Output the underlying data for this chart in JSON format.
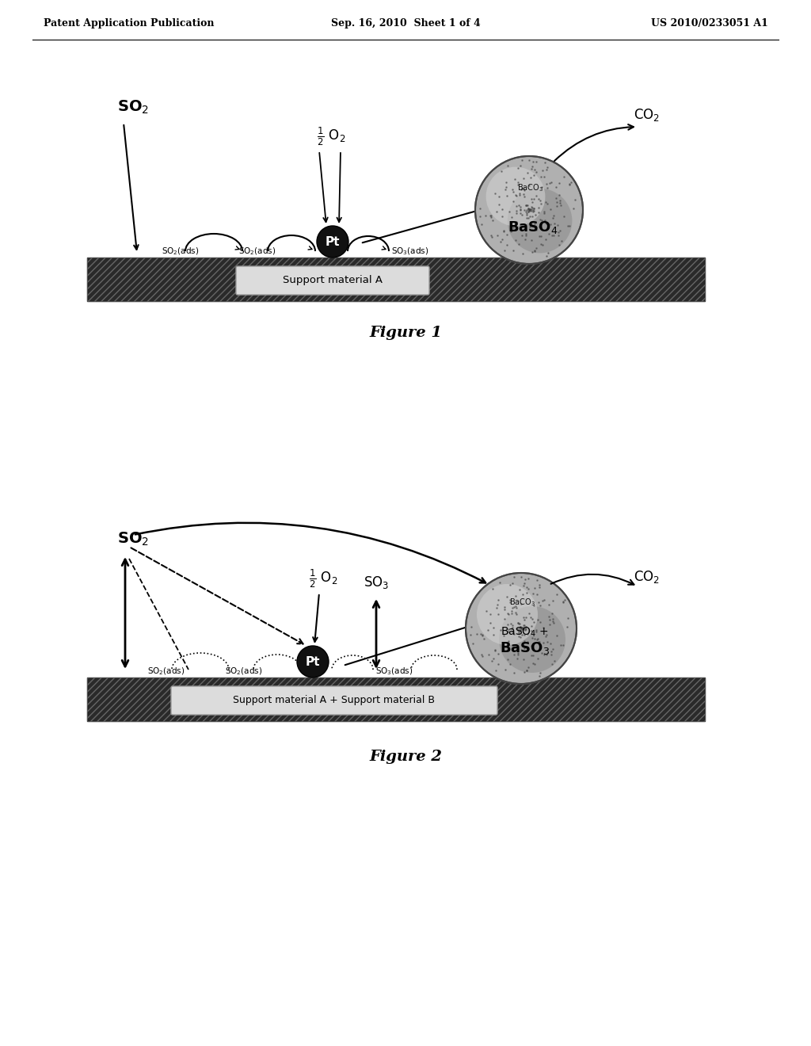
{
  "header_left": "Patent Application Publication",
  "header_center": "Sep. 16, 2010  Sheet 1 of 4",
  "header_right": "US 2010/0233051 A1",
  "fig1_caption": "Figure 1",
  "fig2_caption": "Figure 2",
  "background_color": "#ffffff",
  "text_color": "#000000"
}
